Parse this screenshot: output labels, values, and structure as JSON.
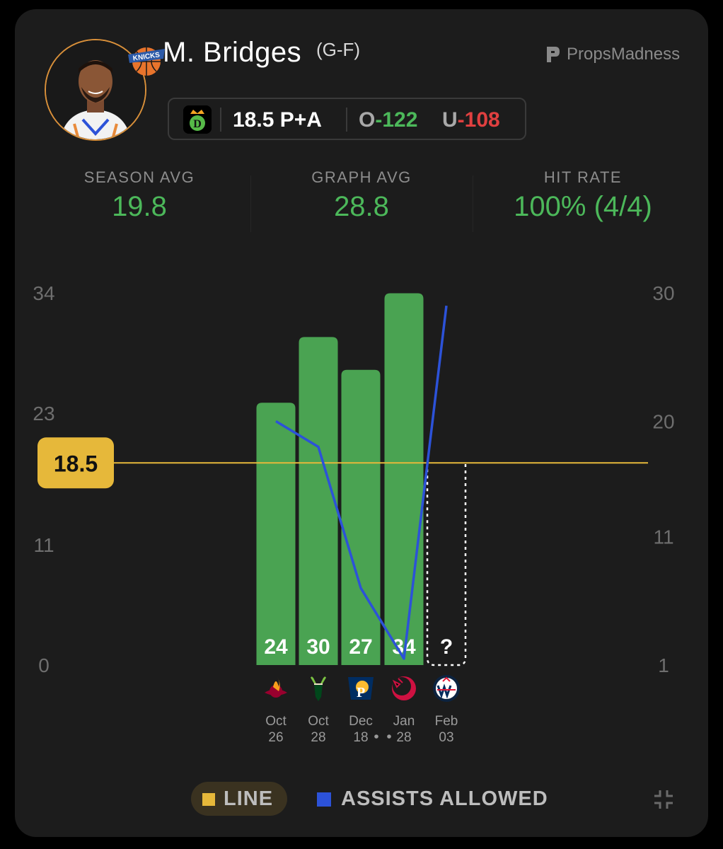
{
  "player": {
    "name": "M. Bridges",
    "position": "(G-F)",
    "team_logo_icon": "knicks-logo-icon",
    "avatar_icon": "player-headshot"
  },
  "brand": {
    "name": "PropsMadness",
    "icon": "propsmadness-logo-icon"
  },
  "odds": {
    "book_icon": "draftkings-logo-icon",
    "line_label": "18.5 P+A",
    "over_prefix": "O",
    "over_value": "-122",
    "under_prefix": "U",
    "under_value": "-108",
    "colors": {
      "over": "#4cb85a",
      "under": "#e04040"
    }
  },
  "stats": {
    "season_avg": {
      "label": "SEASON AVG",
      "value": "19.8"
    },
    "graph_avg": {
      "label": "GRAPH AVG",
      "value": "28.8"
    },
    "hit_rate": {
      "label": "HIT RATE",
      "value": "100% (4/4)"
    }
  },
  "chart_data": {
    "type": "bar",
    "categories": [
      "Oct 26",
      "Oct 28",
      "Dec 18",
      "Jan 28",
      "Feb 03"
    ],
    "date_labels": [
      {
        "month": "Oct",
        "day": "26",
        "opponent_icon": "heat-logo-icon"
      },
      {
        "month": "Oct",
        "day": "28",
        "opponent_icon": "bucks-logo-icon"
      },
      {
        "month": "Dec",
        "day": "18",
        "opponent_icon": "pacers-logo-icon"
      },
      {
        "month": "Jan",
        "day": "28",
        "opponent_icon": "raptors-logo-icon"
      },
      {
        "month": "Feb",
        "day": "03",
        "opponent_icon": "wizards-logo-icon"
      }
    ],
    "series": [
      {
        "values": [
          24,
          30,
          27,
          34,
          null
        ],
        "labels": [
          "24",
          "30",
          "27",
          "34",
          "?"
        ],
        "color": "#4aa352",
        "axis": "left"
      },
      {
        "name": "ASSISTS ALLOWED",
        "values": [
          20,
          18,
          7,
          1.5,
          29
        ],
        "color": "#2c52d8",
        "axis": "right",
        "type": "line"
      }
    ],
    "line": {
      "name": "LINE",
      "value": 18.5,
      "label": "18.5",
      "color": "#e6b83a"
    },
    "left_axis": {
      "ticks": [
        "34",
        "23",
        "11",
        "0"
      ],
      "tick_values": [
        34,
        23,
        11,
        0
      ],
      "range": [
        0,
        34
      ]
    },
    "right_axis": {
      "ticks": [
        "30",
        "20",
        "11",
        "1"
      ],
      "tick_values": [
        30,
        20,
        11,
        1
      ],
      "range": [
        1,
        30
      ]
    },
    "legend": [
      "LINE",
      "ASSISTS ALLOWED"
    ],
    "legend_position": "bottom",
    "grid": false
  }
}
